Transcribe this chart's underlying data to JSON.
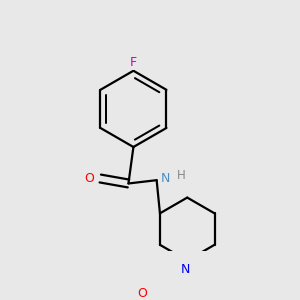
{
  "bg_color": "#e8e8e8",
  "atom_colors": {
    "O": "#ff0000",
    "N_amide": "#4a90c8",
    "N_pipe": "#0000ee",
    "F": "#cc00cc",
    "H": "#888888"
  },
  "bond_color": "#000000",
  "bond_width": 1.6
}
